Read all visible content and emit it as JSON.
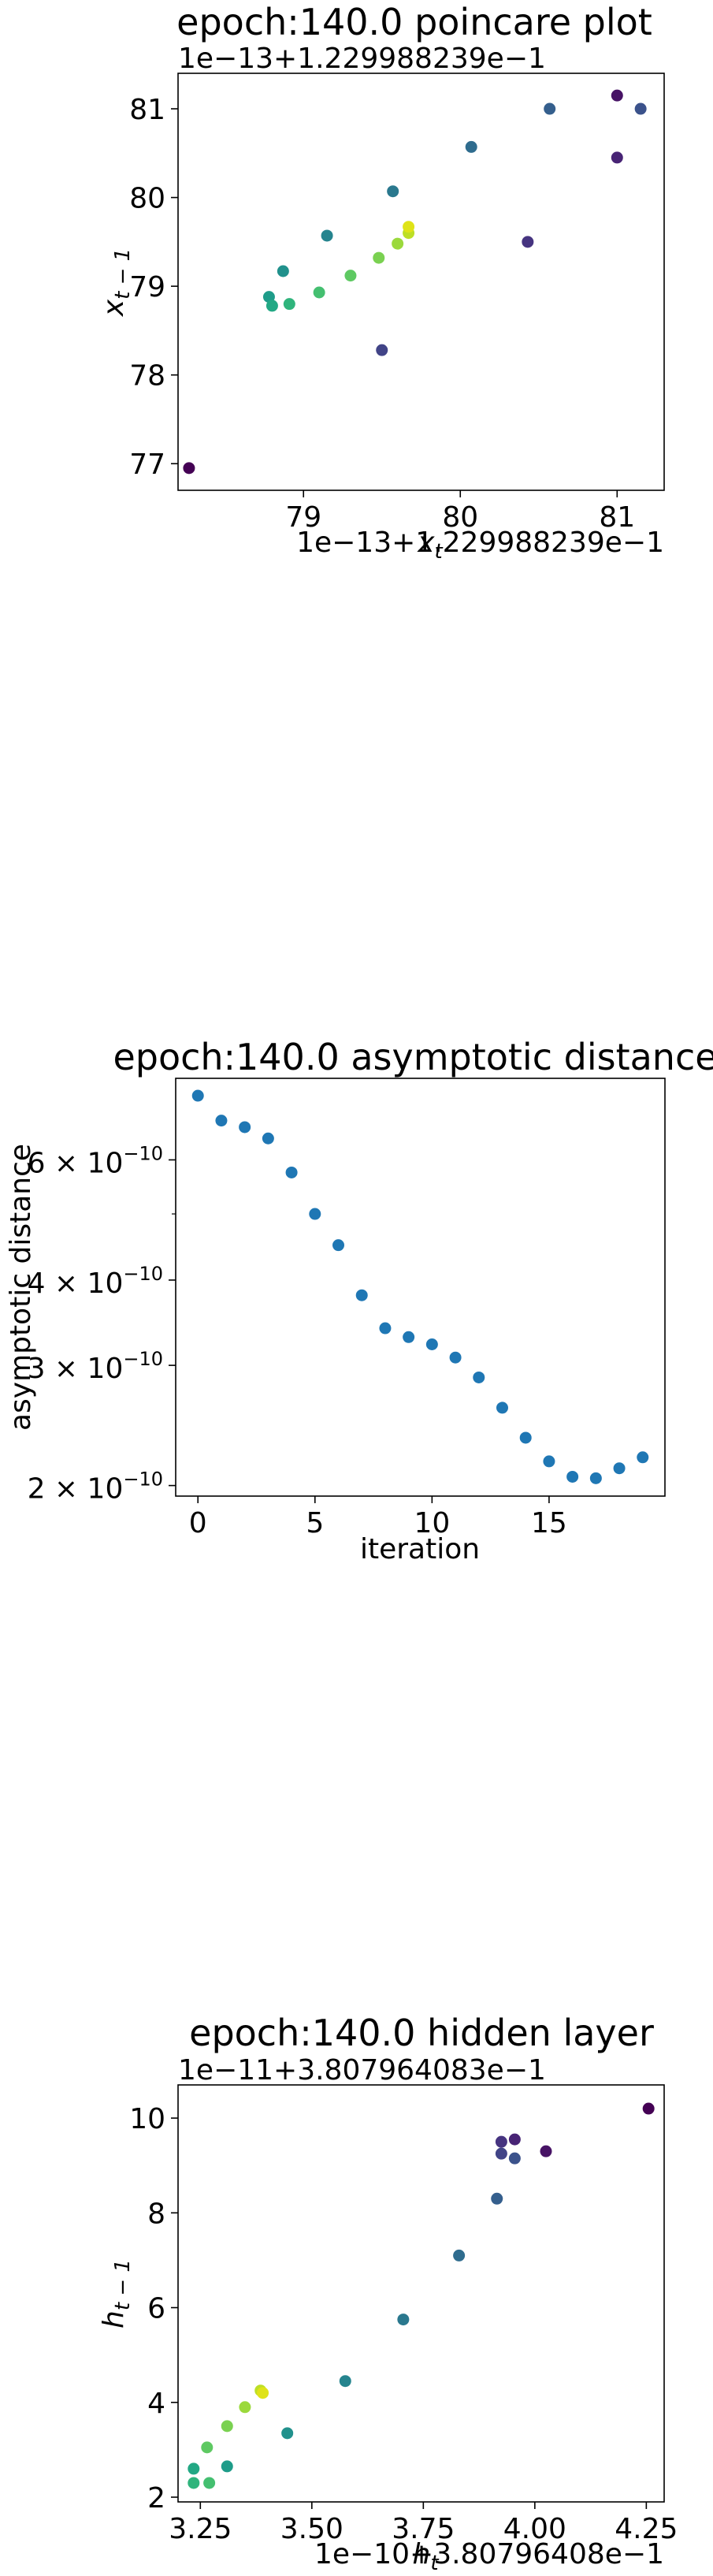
{
  "chart_data": [
    {
      "type": "scatter",
      "title": "epoch:140.0 poincare plot",
      "xlabel": "x_t",
      "ylabel": "x_{t-1}",
      "x_offset_text": "1e−13+1.229988239e−1",
      "y_offset_text": "1e−13+1.229988239e−1",
      "xlim": [
        78.2,
        81.3
      ],
      "ylim": [
        76.7,
        81.4
      ],
      "xticks": [
        {
          "v": 79,
          "label": "79"
        },
        {
          "v": 80,
          "label": "80"
        },
        {
          "v": 81,
          "label": "81"
        }
      ],
      "yticks": [
        {
          "v": 77,
          "label": "77"
        },
        {
          "v": 78,
          "label": "78"
        },
        {
          "v": 79,
          "label": "79"
        },
        {
          "v": 80,
          "label": "80"
        },
        {
          "v": 81,
          "label": "81"
        }
      ],
      "grid": false,
      "colormap": "viridis",
      "points": [
        {
          "x": 78.27,
          "y": 76.95,
          "color": "#440154"
        },
        {
          "x": 81.0,
          "y": 81.15,
          "color": "#471365"
        },
        {
          "x": 81.0,
          "y": 80.45,
          "color": "#482475"
        },
        {
          "x": 80.43,
          "y": 79.5,
          "color": "#463480"
        },
        {
          "x": 79.5,
          "y": 78.28,
          "color": "#414487"
        },
        {
          "x": 81.15,
          "y": 81.0,
          "color": "#3b528b"
        },
        {
          "x": 80.57,
          "y": 81.0,
          "color": "#355f8d"
        },
        {
          "x": 80.07,
          "y": 80.57,
          "color": "#2f6c8e"
        },
        {
          "x": 79.57,
          "y": 80.07,
          "color": "#2a788e"
        },
        {
          "x": 79.15,
          "y": 79.57,
          "color": "#25848e"
        },
        {
          "x": 78.87,
          "y": 79.17,
          "color": "#21918c"
        },
        {
          "x": 78.78,
          "y": 78.88,
          "color": "#1e9c89"
        },
        {
          "x": 78.8,
          "y": 78.78,
          "color": "#22a884"
        },
        {
          "x": 78.91,
          "y": 78.8,
          "color": "#2fb47c"
        },
        {
          "x": 79.1,
          "y": 78.93,
          "color": "#44bf70"
        },
        {
          "x": 79.3,
          "y": 79.12,
          "color": "#5ec962"
        },
        {
          "x": 79.48,
          "y": 79.32,
          "color": "#7ad151"
        },
        {
          "x": 79.6,
          "y": 79.48,
          "color": "#9bd93c"
        },
        {
          "x": 79.67,
          "y": 79.6,
          "color": "#bddf26"
        },
        {
          "x": 79.67,
          "y": 79.67,
          "color": "#dfe318"
        }
      ]
    },
    {
      "type": "scatter",
      "title": "epoch:140.0 asymptotic distance",
      "xlabel": "iteration",
      "ylabel": "asymptotic distance",
      "yscale": "log",
      "xlim": [
        -0.95,
        19.95
      ],
      "ylim": [
        1.93e-10,
        7.9e-10
      ],
      "xticks": [
        {
          "v": 0,
          "label": "0"
        },
        {
          "v": 5,
          "label": "5"
        },
        {
          "v": 10,
          "label": "10"
        },
        {
          "v": 15,
          "label": "15"
        }
      ],
      "yticks": [
        {
          "v": 2e-10,
          "label": "2 × 10",
          "exp": "−10"
        },
        {
          "v": 3e-10,
          "label": "3 × 10",
          "exp": "−10"
        },
        {
          "v": 4e-10,
          "label": "4 × 10",
          "exp": "−10"
        },
        {
          "v": 6e-10,
          "label": "6 × 10",
          "exp": "−10"
        }
      ],
      "minor_yticks": [
        5e-10
      ],
      "grid": false,
      "marker_color": "#1f77b4",
      "x": [
        0,
        1,
        2,
        3,
        4,
        5,
        6,
        7,
        8,
        9,
        10,
        11,
        12,
        13,
        14,
        15,
        16,
        17,
        18,
        19
      ],
      "values": [
        7.45e-10,
        6.85e-10,
        6.7e-10,
        6.45e-10,
        5.75e-10,
        5e-10,
        4.5e-10,
        3.8e-10,
        3.4e-10,
        3.3e-10,
        3.22e-10,
        3.08e-10,
        2.88e-10,
        2.6e-10,
        2.35e-10,
        2.17e-10,
        2.06e-10,
        2.05e-10,
        2.12e-10,
        2.2e-10
      ]
    },
    {
      "type": "scatter",
      "title": "epoch:140.0 hidden layer",
      "xlabel": "h_t",
      "ylabel": "h_{t-1}",
      "x_offset_text": "1e−10+3.80796408e−1",
      "y_offset_text": "1e−11+3.807964083e−1",
      "xlim": [
        3.2,
        4.29
      ],
      "ylim": [
        1.9,
        10.7
      ],
      "xticks": [
        {
          "v": 3.25,
          "label": "3.25"
        },
        {
          "v": 3.5,
          "label": "3.50"
        },
        {
          "v": 3.75,
          "label": "3.75"
        },
        {
          "v": 4.0,
          "label": "4.00"
        },
        {
          "v": 4.25,
          "label": "4.25"
        }
      ],
      "yticks": [
        {
          "v": 2,
          "label": "2"
        },
        {
          "v": 4,
          "label": "4"
        },
        {
          "v": 6,
          "label": "6"
        },
        {
          "v": 8,
          "label": "8"
        },
        {
          "v": 10,
          "label": "10"
        }
      ],
      "grid": false,
      "colormap": "viridis",
      "points": [
        {
          "x": 4.255,
          "y": 10.2,
          "color": "#440154"
        },
        {
          "x": 4.025,
          "y": 9.3,
          "color": "#471365"
        },
        {
          "x": 3.955,
          "y": 9.55,
          "color": "#482475"
        },
        {
          "x": 3.925,
          "y": 9.5,
          "color": "#463480"
        },
        {
          "x": 3.925,
          "y": 9.25,
          "color": "#414487"
        },
        {
          "x": 3.955,
          "y": 9.15,
          "color": "#3b528b"
        },
        {
          "x": 3.915,
          "y": 8.3,
          "color": "#355f8d"
        },
        {
          "x": 3.83,
          "y": 7.1,
          "color": "#2f6c8e"
        },
        {
          "x": 3.705,
          "y": 5.75,
          "color": "#2a788e"
        },
        {
          "x": 3.575,
          "y": 4.45,
          "color": "#25848e"
        },
        {
          "x": 3.445,
          "y": 3.35,
          "color": "#21918c"
        },
        {
          "x": 3.31,
          "y": 2.65,
          "color": "#1e9c89"
        },
        {
          "x": 3.235,
          "y": 2.6,
          "color": "#22a884"
        },
        {
          "x": 3.235,
          "y": 2.3,
          "color": "#2fb47c"
        },
        {
          "x": 3.27,
          "y": 2.3,
          "color": "#44bf70"
        },
        {
          "x": 3.265,
          "y": 3.05,
          "color": "#5ec962"
        },
        {
          "x": 3.31,
          "y": 3.5,
          "color": "#7ad151"
        },
        {
          "x": 3.35,
          "y": 3.9,
          "color": "#9bd93c"
        },
        {
          "x": 3.385,
          "y": 4.25,
          "color": "#bddf26"
        },
        {
          "x": 3.39,
          "y": 4.2,
          "color": "#dfe318"
        }
      ]
    }
  ]
}
